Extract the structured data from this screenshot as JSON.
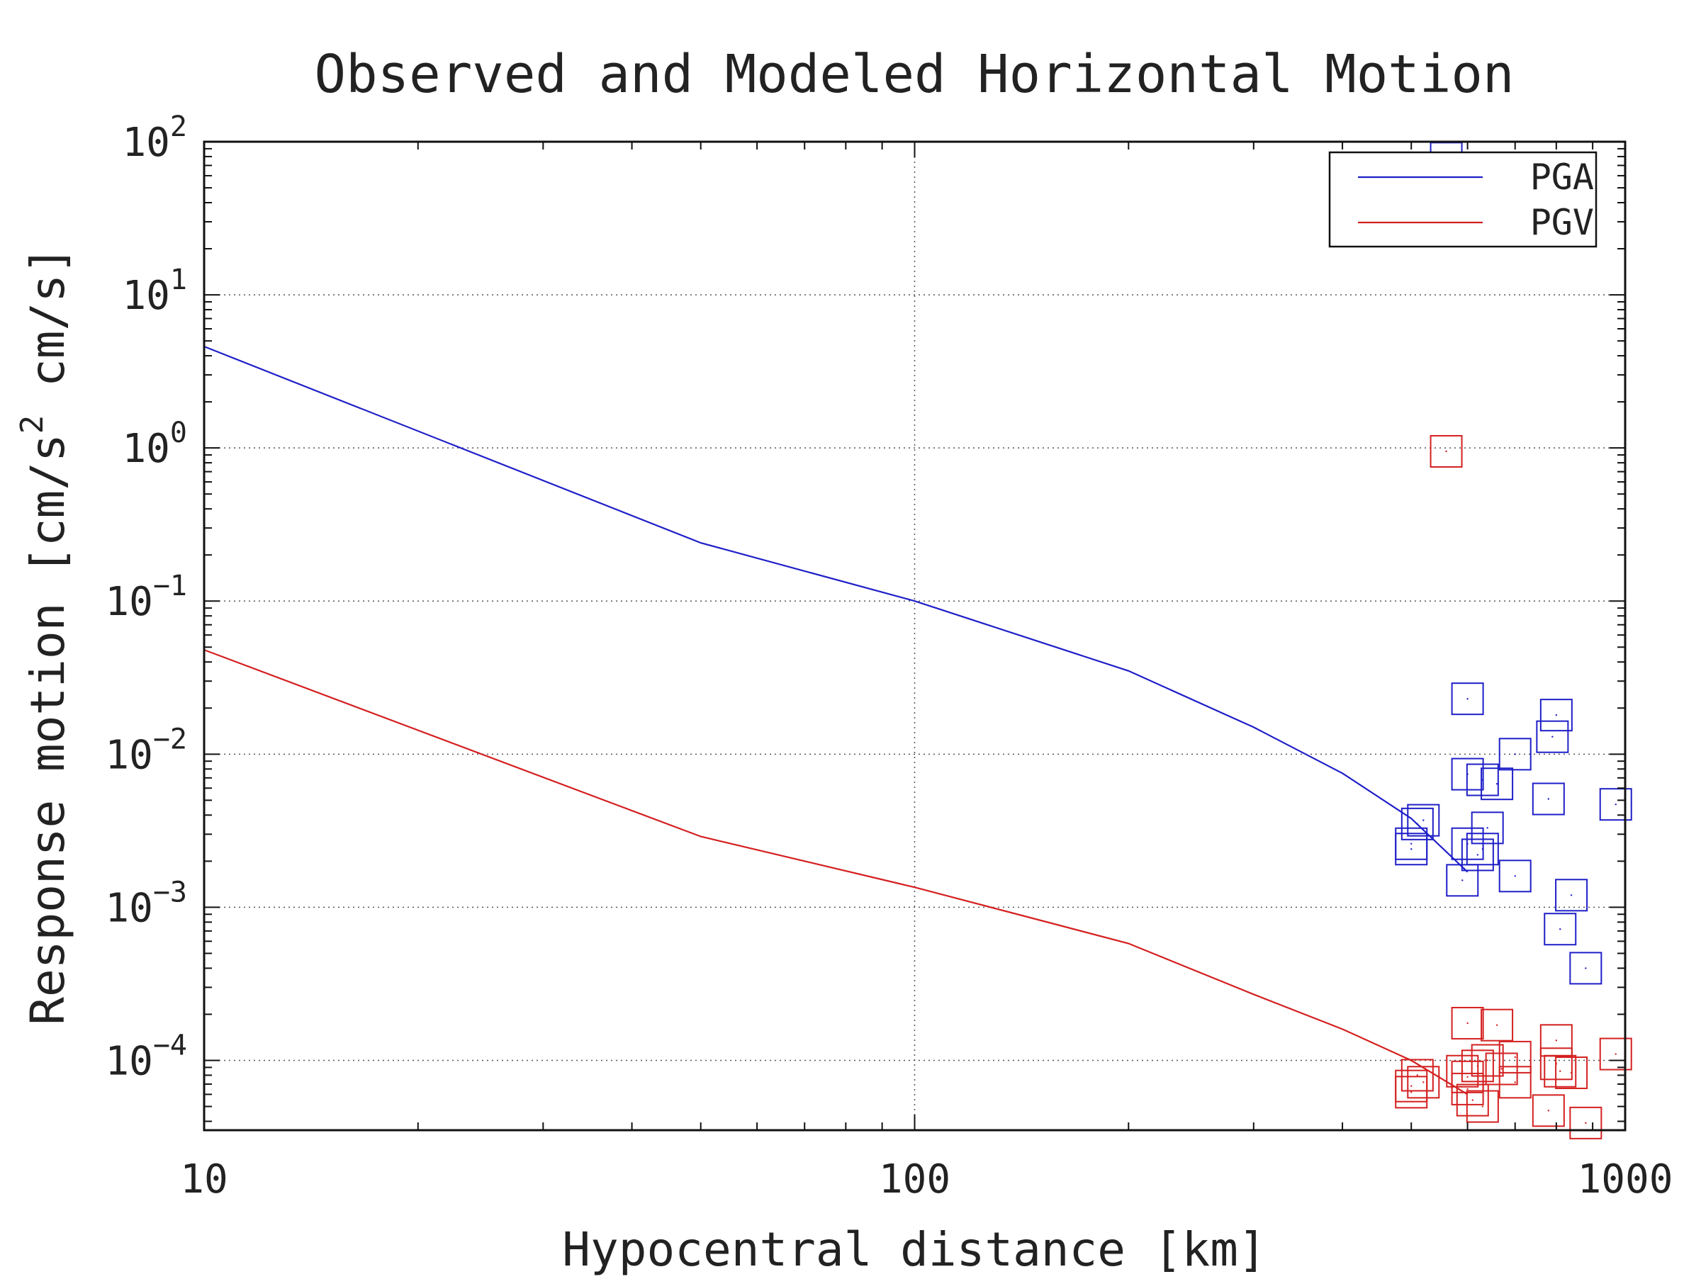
{
  "chart_data": {
    "type": "scatter",
    "title": "Observed and Modeled Horizontal Motion",
    "xlabel": "Hypocentral distance [km]",
    "ylabel_parts": [
      "Response motion [cm/s",
      "2",
      " cm/s]"
    ],
    "xscale": "log",
    "yscale": "log",
    "xlim": [
      10,
      1000
    ],
    "ylim": [
      3.5e-05,
      100
    ],
    "x_ticks": [
      {
        "value": 10,
        "label": "10"
      },
      {
        "value": 100,
        "label": "100"
      },
      {
        "value": 1000,
        "label": "1000"
      }
    ],
    "y_ticks": [
      {
        "value": 100,
        "base": "10",
        "exp": "2"
      },
      {
        "value": 10,
        "base": "10",
        "exp": "1"
      },
      {
        "value": 1,
        "base": "10",
        "exp": "0"
      },
      {
        "value": 0.1,
        "base": "10",
        "exp": "−1"
      },
      {
        "value": 0.01,
        "base": "10",
        "exp": "−2"
      },
      {
        "value": 0.001,
        "base": "10",
        "exp": "−3"
      },
      {
        "value": 0.0001,
        "base": "10",
        "exp": "−4"
      }
    ],
    "grid": "dotted at major ticks",
    "legend": {
      "placement": "top-right",
      "entries": [
        {
          "label": "PGA",
          "color": "#1f1fc8"
        },
        {
          "label": "PGV",
          "color": "#d42020"
        }
      ]
    },
    "lines": [
      {
        "name": "PGA",
        "color": "#1f1fc8",
        "points": [
          [
            10,
            4.6
          ],
          [
            50,
            0.24
          ],
          [
            100,
            0.1
          ],
          [
            200,
            0.035
          ],
          [
            300,
            0.015
          ],
          [
            400,
            0.0075
          ],
          [
            500,
            0.0038
          ],
          [
            600,
            0.0017
          ]
        ]
      },
      {
        "name": "PGV",
        "color": "#d42020",
        "points": [
          [
            10,
            0.048
          ],
          [
            50,
            0.0029
          ],
          [
            100,
            0.00135
          ],
          [
            200,
            0.00058
          ],
          [
            300,
            0.00027
          ],
          [
            400,
            0.00016
          ],
          [
            500,
            0.0001
          ],
          [
            600,
            6e-05
          ]
        ]
      }
    ],
    "observed": [
      {
        "name": "PGA",
        "color": "#1f1fc8",
        "points": [
          [
            560,
            78
          ],
          [
            600,
            0.023
          ],
          [
            800,
            0.018
          ],
          [
            790,
            0.013
          ],
          [
            700,
            0.01
          ],
          [
            600,
            0.0074
          ],
          [
            630,
            0.0068
          ],
          [
            660,
            0.0064
          ],
          [
            780,
            0.0051
          ],
          [
            970,
            0.0047
          ],
          [
            520,
            0.0037
          ],
          [
            510,
            0.0035
          ],
          [
            640,
            0.0033
          ],
          [
            600,
            0.0026
          ],
          [
            500,
            0.0026
          ],
          [
            630,
            0.0024
          ],
          [
            500,
            0.0024
          ],
          [
            620,
            0.0022
          ],
          [
            700,
            0.0016
          ],
          [
            590,
            0.0015
          ],
          [
            840,
            0.0012
          ],
          [
            810,
            0.00072
          ],
          [
            880,
            0.0004
          ]
        ]
      },
      {
        "name": "PGV",
        "color": "#d42020",
        "points": [
          [
            560,
            0.95
          ],
          [
            600,
            0.000175
          ],
          [
            660,
            0.00017
          ],
          [
            800,
            0.000135
          ],
          [
            970,
            0.00011
          ],
          [
            700,
            0.000105
          ],
          [
            640,
            0.0001
          ],
          [
            800,
            9.5e-05
          ],
          [
            620,
            9.2e-05
          ],
          [
            670,
            8.8e-05
          ],
          [
            590,
            8.5e-05
          ],
          [
            810,
            8.5e-05
          ],
          [
            510,
            8e-05
          ],
          [
            840,
            8.3e-05
          ],
          [
            600,
            7.8e-05
          ],
          [
            700,
            7.2e-05
          ],
          [
            500,
            6.8e-05
          ],
          [
            520,
            7.2e-05
          ],
          [
            600,
            6.5e-05
          ],
          [
            500,
            6.2e-05
          ],
          [
            610,
            5.5e-05
          ],
          [
            630,
            5e-05
          ],
          [
            780,
            4.7e-05
          ],
          [
            880,
            3.9e-05
          ]
        ]
      }
    ]
  }
}
